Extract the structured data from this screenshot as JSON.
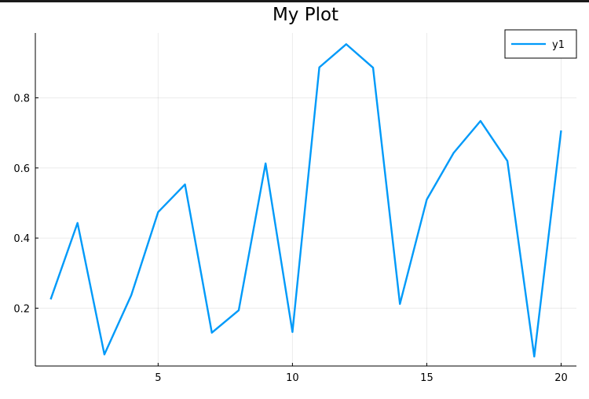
{
  "chart_data": {
    "type": "line",
    "title": "My Plot",
    "xlabel": "",
    "ylabel": "",
    "x": [
      1,
      2,
      3,
      4,
      5,
      6,
      7,
      8,
      9,
      10,
      11,
      12,
      13,
      14,
      15,
      16,
      17,
      18,
      19,
      20
    ],
    "series": [
      {
        "name": "y1",
        "color": "#009af9",
        "values": [
          0.225,
          0.443,
          0.068,
          0.237,
          0.474,
          0.553,
          0.13,
          0.194,
          0.613,
          0.132,
          0.887,
          0.953,
          0.886,
          0.212,
          0.51,
          0.643,
          0.734,
          0.62,
          0.062,
          0.707
        ]
      }
    ],
    "xlim": [
      0.43,
      20.57
    ],
    "ylim": [
      0.035,
      0.985
    ],
    "xticks": [
      5,
      10,
      15,
      20
    ],
    "xtick_labels": [
      "5",
      "10",
      "15",
      "20"
    ],
    "yticks": [
      0.2,
      0.4,
      0.6,
      0.8
    ],
    "ytick_labels": [
      "0.2",
      "0.4",
      "0.6",
      "0.8"
    ],
    "grid": true,
    "legend": "top-right"
  }
}
